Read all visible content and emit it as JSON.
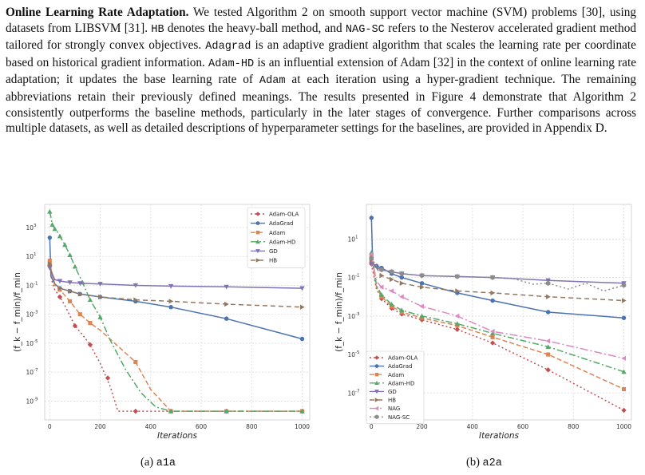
{
  "paragraph": {
    "heading": "Online Learning Rate Adaptation.",
    "t1": " We tested Algorithm 2 on smooth support vector machine (SVM) problems [30], using datasets from LIBSVM [31]. ",
    "c1": "HB",
    "t2": " denotes the heavy-ball method, and ",
    "c2": "NAG-SC",
    "t3": " refers to the Nesterov accelerated gradient method tailored for strongly convex objectives. ",
    "c3": "Adagrad",
    "t4": " is an adaptive gradient algorithm that scales the learning rate per coordinate based on historical gradient information. ",
    "c4": "Adam-HD",
    "t5": " is an influential extension of Adam [32] in the context of online learning rate adaptation; it updates the base learning rate of ",
    "c5": "Adam",
    "t6": " at each iteration using a hyper-gradient technique. The remaining abbreviations retain their previously defined meanings. The results presented in Figure 4 demonstrate that Algorithm 2 consistently outperforms the baseline methods, particularly in the later stages of convergence. Further comparisons across multiple datasets, as well as detailed descriptions of hyperparameter settings for the baselines, are provided in Appendix D."
  },
  "captions": [
    {
      "prefix": "(a) ",
      "name": "a1a"
    },
    {
      "prefix": "(b) ",
      "name": "a2a"
    }
  ],
  "chart_data": [
    {
      "type": "line",
      "subfigure": "a1a",
      "xlabel": "Iterations",
      "ylabel": "(f_k − f_min)/f_min",
      "xlim": [
        -20,
        1030
      ],
      "ylim_log10": [
        -10.3,
        4.6
      ],
      "yscale": "log",
      "xticks": [
        0,
        200,
        400,
        600,
        800,
        1000
      ],
      "yticks": [
        {
          "label": "10",
          "exp": "3"
        },
        {
          "label": "10",
          "exp": "1"
        },
        {
          "label": "10",
          "exp": "-1"
        },
        {
          "label": "10",
          "exp": "-3"
        },
        {
          "label": "10",
          "exp": "-5"
        },
        {
          "label": "10",
          "exp": "-7"
        },
        {
          "label": "10",
          "exp": "-9"
        }
      ],
      "ytick_values_log10": [
        3,
        1,
        -1,
        -3,
        -5,
        -7,
        -9
      ],
      "grid": true,
      "legend_position": "top-right",
      "series": [
        {
          "name": "Adam-OLA",
          "color": "#c44e52",
          "dash": "2,3",
          "marker": "diamond",
          "x": [
            0,
            10,
            20,
            40,
            60,
            80,
            100,
            120,
            160,
            200,
            240,
            270,
            340,
            480,
            700,
            1000
          ],
          "log10y": [
            0.4,
            -0.8,
            -1.3,
            -1.8,
            -2.4,
            -3.1,
            -3.8,
            -4.2,
            -5.1,
            -6.4,
            -8.0,
            -9.7,
            -9.7,
            -9.7,
            -9.7,
            -9.7
          ],
          "markers_x": [
            0,
            40,
            100,
            160,
            230,
            340,
            480,
            700,
            1000
          ],
          "markers_log10y": [
            0.4,
            -1.8,
            -3.8,
            -5.1,
            -7.4,
            -9.7,
            -9.7,
            -9.7,
            -9.7
          ]
        },
        {
          "name": "AdaGrad",
          "color": "#4c72b0",
          "dash": "",
          "marker": "circle",
          "x": [
            0,
            5,
            20,
            40,
            80,
            120,
            200,
            340,
            480,
            700,
            1000
          ],
          "log10y": [
            2.3,
            -0.4,
            -0.9,
            -1.2,
            -1.4,
            -1.6,
            -1.8,
            -2.1,
            -2.5,
            -3.3,
            -4.7
          ],
          "markers_x": [
            0,
            40,
            80,
            120,
            200,
            340,
            480,
            700,
            1000
          ],
          "markers_log10y": [
            2.3,
            -1.2,
            -1.4,
            -1.6,
            -1.8,
            -2.1,
            -2.5,
            -3.3,
            -4.7
          ]
        },
        {
          "name": "Adam",
          "color": "#dd8452",
          "dash": "6,3",
          "marker": "square",
          "x": [
            0,
            10,
            20,
            40,
            80,
            120,
            160,
            200,
            340,
            400,
            480,
            700,
            1000
          ],
          "log10y": [
            0.7,
            -0.4,
            -1.0,
            -1.3,
            -2.1,
            -3.0,
            -3.6,
            -4.1,
            -6.3,
            -8.2,
            -9.7,
            -9.7,
            -9.7
          ],
          "markers_x": [
            0,
            40,
            80,
            120,
            160,
            340,
            480,
            700,
            1000
          ],
          "markers_log10y": [
            0.7,
            -1.3,
            -2.1,
            -3.0,
            -3.6,
            -6.3,
            -9.7,
            -9.7,
            -9.7
          ]
        },
        {
          "name": "Adam-HD",
          "color": "#55a868",
          "dash": "8,3,2,3",
          "marker": "triangle",
          "x": [
            0,
            5,
            10,
            20,
            30,
            40,
            60,
            80,
            100,
            130,
            160,
            200,
            240,
            300,
            360,
            420,
            480,
            700,
            1000
          ],
          "log10y": [
            4.1,
            3.7,
            3.2,
            2.9,
            2.7,
            2.4,
            1.8,
            1.1,
            0.3,
            -0.8,
            -2.0,
            -3.2,
            -4.8,
            -6.8,
            -8.4,
            -9.4,
            -9.7,
            -9.7,
            -9.7
          ],
          "markers_x": [
            0,
            10,
            20,
            40,
            60,
            80,
            100,
            130,
            160,
            200,
            480,
            700,
            1000
          ],
          "markers_log10y": [
            4.1,
            3.2,
            2.9,
            2.4,
            1.8,
            1.1,
            0.3,
            -0.8,
            -2.0,
            -3.2,
            -9.7,
            -9.7,
            -9.7
          ]
        },
        {
          "name": "GD",
          "color": "#8172b3",
          "dash": "",
          "marker": "triangle-down",
          "x": [
            0,
            20,
            40,
            80,
            120,
            200,
            340,
            480,
            700,
            1000
          ],
          "log10y": [
            0.2,
            -0.6,
            -0.7,
            -0.8,
            -0.85,
            -0.9,
            -1.0,
            -1.05,
            -1.1,
            -1.2
          ],
          "markers_x": [
            0,
            40,
            80,
            120,
            200,
            340,
            480,
            700,
            1000
          ],
          "markers_log10y": [
            0.2,
            -0.7,
            -0.8,
            -0.85,
            -0.9,
            -1.0,
            -1.05,
            -1.1,
            -1.2
          ]
        },
        {
          "name": "HB",
          "color": "#937860",
          "dash": "6,4",
          "marker": "triangle-right",
          "x": [
            0,
            20,
            40,
            80,
            120,
            200,
            340,
            480,
            700,
            1000
          ],
          "log10y": [
            0.5,
            -0.9,
            -1.2,
            -1.4,
            -1.6,
            -1.8,
            -2.0,
            -2.1,
            -2.3,
            -2.5
          ],
          "markers_x": [
            0,
            40,
            80,
            120,
            200,
            340,
            480,
            700,
            1000
          ],
          "markers_log10y": [
            0.5,
            -1.2,
            -1.4,
            -1.6,
            -1.8,
            -2.0,
            -2.1,
            -2.3,
            -2.5
          ]
        }
      ]
    },
    {
      "type": "line",
      "subfigure": "a2a",
      "xlabel": "Iterations",
      "ylabel": "(f_k − f_min)/f_min",
      "xlim": [
        -20,
        1030
      ],
      "ylim_log10": [
        -8.4,
        2.8
      ],
      "yscale": "log",
      "xticks": [
        0,
        200,
        400,
        600,
        800,
        1000
      ],
      "yticks": [
        {
          "label": "10",
          "exp": "1"
        },
        {
          "label": "10",
          "exp": "-1"
        },
        {
          "label": "10",
          "exp": "-3"
        },
        {
          "label": "10",
          "exp": "-5"
        },
        {
          "label": "10",
          "exp": "-7"
        }
      ],
      "ytick_values_log10": [
        1,
        -1,
        -3,
        -5,
        -7
      ],
      "grid": true,
      "legend_position": "bottom-left",
      "series": [
        {
          "name": "Adam-OLA",
          "color": "#c44e52",
          "dash": "2,3",
          "marker": "diamond",
          "x": [
            0,
            20,
            40,
            80,
            120,
            200,
            340,
            480,
            700,
            1000
          ],
          "log10y": [
            -0.3,
            -1.6,
            -2.1,
            -2.6,
            -2.9,
            -3.2,
            -3.7,
            -4.4,
            -5.8,
            -7.9
          ],
          "markers_x": [
            0,
            40,
            80,
            120,
            200,
            340,
            480,
            700,
            1000
          ],
          "markers_log10y": [
            -0.3,
            -2.1,
            -2.6,
            -2.9,
            -3.2,
            -3.7,
            -4.4,
            -5.8,
            -7.9
          ]
        },
        {
          "name": "AdaGrad",
          "color": "#4c72b0",
          "dash": "",
          "marker": "circle",
          "x": [
            0,
            5,
            20,
            40,
            80,
            120,
            200,
            340,
            480,
            700,
            1000
          ],
          "log10y": [
            2.1,
            -0.3,
            -0.4,
            -0.5,
            -0.8,
            -1.0,
            -1.3,
            -1.8,
            -2.2,
            -2.8,
            -3.1
          ],
          "markers_x": [
            0,
            20,
            40,
            80,
            120,
            200,
            340,
            480,
            700,
            1000
          ],
          "markers_log10y": [
            2.1,
            -0.4,
            -0.5,
            -0.8,
            -1.0,
            -1.3,
            -1.8,
            -2.2,
            -2.8,
            -3.1
          ]
        },
        {
          "name": "Adam",
          "color": "#dd8452",
          "dash": "6,3",
          "marker": "square",
          "x": [
            0,
            20,
            40,
            80,
            120,
            200,
            340,
            480,
            700,
            1000
          ],
          "log10y": [
            0.1,
            -1.5,
            -2.0,
            -2.5,
            -2.8,
            -3.1,
            -3.5,
            -4.1,
            -5.0,
            -6.8
          ],
          "markers_x": [
            0,
            40,
            80,
            120,
            200,
            340,
            480,
            700,
            1000
          ],
          "markers_log10y": [
            0.1,
            -2.0,
            -2.5,
            -2.8,
            -3.1,
            -3.5,
            -4.1,
            -5.0,
            -6.8
          ]
        },
        {
          "name": "Adam-HD",
          "color": "#55a868",
          "dash": "8,3,2,3",
          "marker": "triangle",
          "x": [
            0,
            20,
            40,
            80,
            120,
            200,
            340,
            480,
            700,
            1000
          ],
          "log10y": [
            0.3,
            -1.4,
            -1.9,
            -2.4,
            -2.7,
            -3.0,
            -3.4,
            -3.9,
            -4.6,
            -5.9
          ],
          "markers_x": [
            0,
            40,
            80,
            120,
            200,
            340,
            480,
            700,
            1000
          ],
          "markers_log10y": [
            0.3,
            -1.9,
            -2.4,
            -2.7,
            -3.0,
            -3.4,
            -3.9,
            -4.6,
            -5.9
          ]
        },
        {
          "name": "GD",
          "color": "#8172b3",
          "dash": "",
          "marker": "triangle-down",
          "x": [
            0,
            20,
            40,
            80,
            120,
            200,
            340,
            480,
            700,
            1000
          ],
          "log10y": [
            -0.3,
            -0.5,
            -0.6,
            -0.7,
            -0.8,
            -0.9,
            -0.95,
            -1.0,
            -1.15,
            -1.3
          ],
          "markers_x": [
            0,
            40,
            80,
            120,
            200,
            340,
            480,
            700,
            1000
          ],
          "markers_log10y": [
            -0.3,
            -0.6,
            -0.7,
            -0.8,
            -0.9,
            -0.95,
            -1.0,
            -1.15,
            -1.3
          ]
        },
        {
          "name": "HB",
          "color": "#937860",
          "dash": "6,4",
          "marker": "triangle-right",
          "x": [
            0,
            20,
            40,
            80,
            120,
            200,
            340,
            480,
            700,
            1000
          ],
          "log10y": [
            -0.1,
            -0.5,
            -0.9,
            -1.1,
            -1.3,
            -1.5,
            -1.7,
            -1.8,
            -2.0,
            -2.2
          ],
          "markers_x": [
            0,
            40,
            80,
            120,
            200,
            340,
            480,
            700,
            1000
          ],
          "markers_log10y": [
            -0.1,
            -0.9,
            -1.1,
            -1.3,
            -1.5,
            -1.7,
            -1.8,
            -2.0,
            -2.2
          ]
        },
        {
          "name": "NAG",
          "color": "#da8bc3",
          "dash": "10,3,2,3",
          "marker": "triangle-left",
          "x": [
            0,
            20,
            40,
            80,
            120,
            200,
            340,
            480,
            700,
            1000
          ],
          "log10y": [
            0.2,
            -1.2,
            -1.5,
            -1.7,
            -2.0,
            -2.5,
            -3.0,
            -3.8,
            -4.3,
            -5.2
          ],
          "markers_x": [
            0,
            40,
            80,
            120,
            200,
            340,
            480,
            700,
            1000
          ],
          "markers_log10y": [
            0.2,
            -1.5,
            -1.7,
            -2.0,
            -2.5,
            -3.0,
            -3.8,
            -4.3,
            -5.2
          ]
        },
        {
          "name": "NAG-SC",
          "color": "#8c8c8c",
          "dash": "2,3",
          "marker": "hexagon",
          "x": [
            0,
            20,
            40,
            80,
            120,
            200,
            340,
            480,
            560,
            640,
            700,
            780,
            850,
            920,
            1000
          ],
          "log10y": [
            0.0,
            -0.4,
            -0.6,
            -0.7,
            -0.8,
            -0.9,
            -0.95,
            -1.0,
            -1.05,
            -1.35,
            -1.3,
            -1.6,
            -1.3,
            -1.7,
            -1.4
          ],
          "markers_x": [
            0,
            40,
            80,
            120,
            200,
            340,
            480,
            700,
            1000
          ],
          "markers_log10y": [
            0.0,
            -0.6,
            -0.7,
            -0.8,
            -0.9,
            -0.95,
            -1.0,
            -1.3,
            -1.4
          ]
        }
      ]
    }
  ]
}
